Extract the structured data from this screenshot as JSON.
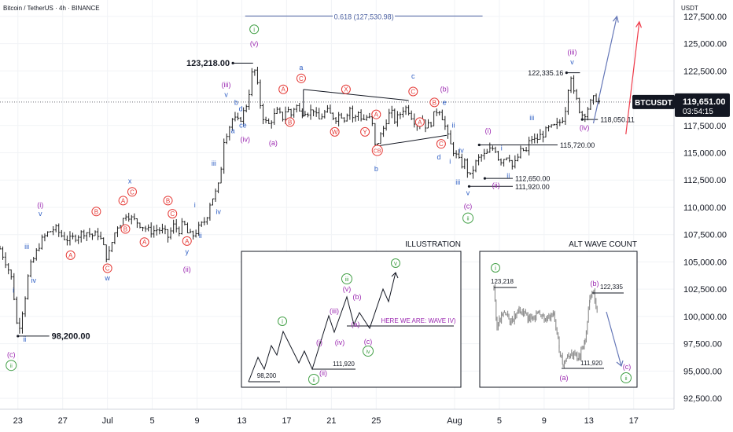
{
  "header": {
    "symbol_title": "Bitcoin / TetherUS · 4h · BINANCE"
  },
  "colors": {
    "bar": "#1e1e1e",
    "blue": "#2f5fc4",
    "purple": "#9b27b0",
    "red": "#e53935",
    "green": "#43a047",
    "fib": "#4a5fa0",
    "arrow_blue": "#6678b8",
    "arrow_red": "#ef3b4a",
    "grid": "#f1f3f6"
  },
  "chart_data": {
    "type": "candlestick",
    "timeframe": "4h",
    "ylim": [
      91500,
      129000
    ],
    "yunit": "USDT",
    "y_ticks": [
      92500,
      95000,
      97500,
      100000,
      102500,
      105000,
      107500,
      110000,
      112500,
      115000,
      117500,
      120000,
      122500,
      125000,
      127500
    ],
    "y_tick_labels": [
      "92,500.00",
      "95,000.00",
      "97,500.00",
      "100,000.00",
      "102,500.00",
      "105,000.00",
      "107,500.00",
      "110,000.00",
      "112,500.00",
      "115,000.00",
      "117,500.00",
      "120,000.00",
      "122,500.00",
      "125,000.00",
      "127,500.00"
    ],
    "x_ticks": [
      {
        "x": 23,
        "label": "23"
      },
      {
        "x": 27,
        "label": "27"
      },
      {
        "x": 31,
        "label": "Jul"
      },
      {
        "x": 35,
        "label": "5"
      },
      {
        "x": 39,
        "label": "9"
      },
      {
        "x": 43,
        "label": "13"
      },
      {
        "x": 47,
        "label": "17"
      },
      {
        "x": 51,
        "label": "21"
      },
      {
        "x": 55,
        "label": "25"
      },
      {
        "x": 62,
        "label": "Aug"
      },
      {
        "x": 66,
        "label": "5"
      },
      {
        "x": 70,
        "label": "9"
      },
      {
        "x": 74,
        "label": "13"
      },
      {
        "x": 78,
        "label": "17"
      }
    ],
    "x_range": [
      21.4,
      81.6
    ],
    "close_path": [
      [
        21.4,
        106200
      ],
      [
        22.0,
        104800
      ],
      [
        22.5,
        103200
      ],
      [
        23.0,
        98400
      ],
      [
        23.2,
        99500
      ],
      [
        23.6,
        101500
      ],
      [
        24.0,
        104300
      ],
      [
        24.5,
        105500
      ],
      [
        25.0,
        106800
      ],
      [
        25.6,
        107600
      ],
      [
        26.3,
        108100
      ],
      [
        27.0,
        107300
      ],
      [
        27.6,
        107000
      ],
      [
        28.3,
        107400
      ],
      [
        29.0,
        107800
      ],
      [
        29.7,
        107400
      ],
      [
        30.2,
        107600
      ],
      [
        30.6,
        106500
      ],
      [
        31.0,
        105200
      ],
      [
        31.4,
        106800
      ],
      [
        31.8,
        108200
      ],
      [
        32.3,
        108700
      ],
      [
        32.7,
        109500
      ],
      [
        33.2,
        108900
      ],
      [
        33.6,
        108700
      ],
      [
        34.1,
        108300
      ],
      [
        34.6,
        107900
      ],
      [
        35.0,
        107800
      ],
      [
        35.5,
        108000
      ],
      [
        36.0,
        107800
      ],
      [
        36.4,
        107300
      ],
      [
        36.9,
        108300
      ],
      [
        37.4,
        107900
      ],
      [
        37.8,
        108600
      ],
      [
        38.2,
        107500
      ],
      [
        38.6,
        107400
      ],
      [
        39.0,
        107900
      ],
      [
        39.4,
        108400
      ],
      [
        39.8,
        108900
      ],
      [
        40.2,
        110600
      ],
      [
        40.6,
        111200
      ],
      [
        41.0,
        112200
      ],
      [
        41.4,
        116200
      ],
      [
        41.8,
        117200
      ],
      [
        42.2,
        118200
      ],
      [
        42.6,
        117800
      ],
      [
        43.0,
        118300
      ],
      [
        43.4,
        119400
      ],
      [
        43.7,
        120800
      ],
      [
        43.9,
        122200
      ],
      [
        44.1,
        122800
      ],
      [
        44.4,
        121100
      ],
      [
        44.7,
        119100
      ],
      [
        45.0,
        117900
      ],
      [
        45.4,
        117600
      ],
      [
        45.8,
        118300
      ],
      [
        46.2,
        118800
      ],
      [
        46.6,
        118100
      ],
      [
        47.0,
        119100
      ],
      [
        47.4,
        118500
      ],
      [
        47.8,
        119500
      ],
      [
        48.2,
        118600
      ],
      [
        48.6,
        118900
      ],
      [
        49.0,
        118700
      ],
      [
        49.4,
        119000
      ],
      [
        49.8,
        117900
      ],
      [
        50.2,
        118500
      ],
      [
        50.6,
        118800
      ],
      [
        51.0,
        118400
      ],
      [
        51.4,
        118200
      ],
      [
        51.8,
        118600
      ],
      [
        52.2,
        118100
      ],
      [
        52.6,
        119300
      ],
      [
        53.0,
        117900
      ],
      [
        53.4,
        118700
      ],
      [
        53.8,
        118000
      ],
      [
        54.2,
        118300
      ],
      [
        54.6,
        117900
      ],
      [
        54.9,
        115600
      ],
      [
        55.1,
        115900
      ],
      [
        55.5,
        116800
      ],
      [
        55.9,
        118000
      ],
      [
        56.3,
        118800
      ],
      [
        56.7,
        117900
      ],
      [
        57.1,
        118500
      ],
      [
        57.5,
        119200
      ],
      [
        57.9,
        118900
      ],
      [
        58.3,
        118100
      ],
      [
        58.7,
        117600
      ],
      [
        59.1,
        118200
      ],
      [
        59.5,
        117300
      ],
      [
        59.9,
        117800
      ],
      [
        60.3,
        118800
      ],
      [
        60.7,
        119000
      ],
      [
        61.1,
        117600
      ],
      [
        61.5,
        116000
      ],
      [
        61.9,
        115200
      ],
      [
        62.2,
        114600
      ],
      [
        62.6,
        113900
      ],
      [
        63.0,
        114200
      ],
      [
        63.3,
        112500
      ],
      [
        63.6,
        113400
      ],
      [
        64.0,
        114300
      ],
      [
        64.4,
        114700
      ],
      [
        64.8,
        114800
      ],
      [
        65.2,
        115300
      ],
      [
        65.6,
        115500
      ],
      [
        66.0,
        114200
      ],
      [
        66.4,
        114500
      ],
      [
        66.8,
        114900
      ],
      [
        67.2,
        113600
      ],
      [
        67.6,
        114500
      ],
      [
        68.0,
        115300
      ],
      [
        68.4,
        115100
      ],
      [
        68.8,
        116400
      ],
      [
        69.2,
        116100
      ],
      [
        69.6,
        116500
      ],
      [
        70.0,
        116800
      ],
      [
        70.4,
        117200
      ],
      [
        70.8,
        117300
      ],
      [
        71.2,
        117600
      ],
      [
        71.6,
        118000
      ],
      [
        72.0,
        119400
      ],
      [
        72.2,
        121600
      ],
      [
        72.4,
        122100
      ],
      [
        72.6,
        120500
      ],
      [
        72.9,
        119800
      ],
      [
        73.2,
        118800
      ],
      [
        73.5,
        118400
      ],
      [
        73.8,
        118900
      ],
      [
        74.1,
        119500
      ],
      [
        74.4,
        119900
      ],
      [
        74.7,
        120000
      ],
      [
        75.0,
        119500
      ]
    ],
    "horizontal_levels": [
      {
        "price": 123218,
        "label": "123,218.00",
        "x1": 42.2,
        "x2": 44.0
      },
      {
        "price": 98200,
        "label": "98,200.00",
        "x1": 23.0,
        "x2": 25.8
      },
      {
        "price": 122335.16,
        "label": "122,335.16",
        "x1": 72.0,
        "x2": 73.2
      },
      {
        "price": 118050.11,
        "label": "118,050.11",
        "x1": 73.4,
        "x2": 74.8
      },
      {
        "price": 115720,
        "label": "115,720.00",
        "x1": 64.2,
        "x2": 71.2
      },
      {
        "price": 112650,
        "label": "112,650.00",
        "x1": 64.7,
        "x2": 67.2
      },
      {
        "price": 111920,
        "label": "111,920.00",
        "x1": 63.3,
        "x2": 67.2
      }
    ],
    "fib_level": {
      "label": "0.618 (127,530.98)",
      "price": 127530.98,
      "x1": 43.3,
      "x2": 64.5
    },
    "triangle": {
      "lines": [
        [
          [
            48.5,
            120800
          ],
          [
            57.9,
            119800
          ]
        ],
        [
          [
            48.5,
            120800
          ],
          [
            48.5,
            118300
          ]
        ],
        [
          [
            55.0,
            115600
          ],
          [
            61.3,
            116600
          ]
        ]
      ]
    },
    "projections": [
      {
        "name": "",
        "color": "arrow_blue",
        "points": [
          [
            74.4,
            117700
          ],
          [
            76.5,
            127500
          ]
        ]
      },
      {
        "name": "",
        "color": "arrow_red",
        "points": [
          [
            77.3,
            116700
          ],
          [
            78.5,
            127000
          ]
        ]
      }
    ],
    "current_price": {
      "symbol": "BTCUSDT",
      "price": "119,651.00",
      "countdown": "03:54:15",
      "value": 119651
    }
  },
  "wave_labels": [
    {
      "t": "(i)",
      "x": 25.0,
      "p": 110000,
      "c": "purple",
      "ring": false
    },
    {
      "t": "v",
      "x": 25.0,
      "p": 109200,
      "c": "blue",
      "ring": false
    },
    {
      "t": "iii",
      "x": 23.8,
      "p": 106200,
      "c": "blue",
      "ring": false
    },
    {
      "t": "iv",
      "x": 24.4,
      "p": 103100,
      "c": "blue",
      "ring": false
    },
    {
      "t": "i",
      "x": 22.6,
      "p": 102200,
      "c": "blue",
      "ring": false
    },
    {
      "t": "ii",
      "x": 23.6,
      "p": 97700,
      "c": "blue",
      "ring": false
    },
    {
      "t": "(c)",
      "x": 22.4,
      "p": 96300,
      "c": "purple",
      "ring": false
    },
    {
      "t": "ii",
      "x": 22.4,
      "p": 95300,
      "c": "green",
      "ring": true
    },
    {
      "t": "A",
      "x": 27.7,
      "p": 105400,
      "c": "red",
      "ring": true
    },
    {
      "t": "B",
      "x": 30.0,
      "p": 109400,
      "c": "red",
      "ring": true
    },
    {
      "t": "C",
      "x": 31.0,
      "p": 104200,
      "c": "red",
      "ring": true
    },
    {
      "t": "w",
      "x": 31.0,
      "p": 103300,
      "c": "blue",
      "ring": false
    },
    {
      "t": "x",
      "x": 33.0,
      "p": 112200,
      "c": "blue",
      "ring": false
    },
    {
      "t": "A",
      "x": 32.4,
      "p": 110400,
      "c": "red",
      "ring": true
    },
    {
      "t": "C",
      "x": 33.2,
      "p": 111200,
      "c": "red",
      "ring": true
    },
    {
      "t": "B",
      "x": 32.6,
      "p": 107800,
      "c": "red",
      "ring": true
    },
    {
      "t": "A",
      "x": 34.3,
      "p": 106600,
      "c": "red",
      "ring": true
    },
    {
      "t": "B",
      "x": 36.4,
      "p": 110400,
      "c": "red",
      "ring": true
    },
    {
      "t": "C",
      "x": 36.8,
      "p": 109200,
      "c": "red",
      "ring": true
    },
    {
      "t": "A",
      "x": 38.1,
      "p": 106700,
      "c": "red",
      "ring": true
    },
    {
      "t": "y",
      "x": 38.1,
      "p": 105700,
      "c": "blue",
      "ring": false
    },
    {
      "t": "(ii)",
      "x": 38.1,
      "p": 104100,
      "c": "purple",
      "ring": false
    },
    {
      "t": "i",
      "x": 38.8,
      "p": 110000,
      "c": "blue",
      "ring": false
    },
    {
      "t": "ii",
      "x": 39.3,
      "p": 107200,
      "c": "blue",
      "ring": false
    },
    {
      "t": "iii",
      "x": 40.5,
      "p": 113800,
      "c": "blue",
      "ring": false
    },
    {
      "t": "iv",
      "x": 40.9,
      "p": 109400,
      "c": "blue",
      "ring": false
    },
    {
      "t": "(iii)",
      "x": 41.6,
      "p": 121000,
      "c": "purple",
      "ring": false
    },
    {
      "t": "v",
      "x": 41.6,
      "p": 120100,
      "c": "blue",
      "ring": false
    },
    {
      "t": "b",
      "x": 42.5,
      "p": 119400,
      "c": "blue",
      "ring": false
    },
    {
      "t": "d",
      "x": 42.9,
      "p": 118800,
      "c": "blue",
      "ring": false
    },
    {
      "t": "a",
      "x": 42.2,
      "p": 116800,
      "c": "blue",
      "ring": false
    },
    {
      "t": "ce",
      "x": 43.1,
      "p": 117300,
      "c": "blue",
      "ring": false
    },
    {
      "t": "(iv)",
      "x": 43.3,
      "p": 116000,
      "c": "purple",
      "ring": false
    },
    {
      "t": "i",
      "x": 44.1,
      "p": 126100,
      "c": "green",
      "ring": true
    },
    {
      "t": "(v)",
      "x": 44.1,
      "p": 124800,
      "c": "purple",
      "ring": false
    },
    {
      "t": "(a)",
      "x": 45.8,
      "p": 115700,
      "c": "purple",
      "ring": false
    },
    {
      "t": "a",
      "x": 48.3,
      "p": 122600,
      "c": "blue",
      "ring": false
    },
    {
      "t": "C",
      "x": 48.3,
      "p": 121600,
      "c": "red",
      "ring": true
    },
    {
      "t": "A",
      "x": 46.7,
      "p": 120600,
      "c": "red",
      "ring": true
    },
    {
      "t": "B",
      "x": 47.3,
      "p": 117600,
      "c": "red",
      "ring": true
    },
    {
      "t": "X",
      "x": 52.3,
      "p": 120600,
      "c": "red",
      "ring": true
    },
    {
      "t": "W",
      "x": 51.3,
      "p": 116700,
      "c": "red",
      "ring": true
    },
    {
      "t": "Y",
      "x": 54.0,
      "p": 116700,
      "c": "red",
      "ring": true
    },
    {
      "t": "A",
      "x": 55.0,
      "p": 118300,
      "c": "red",
      "ring": true
    },
    {
      "t": "c",
      "x": 58.3,
      "p": 121800,
      "c": "blue",
      "ring": false
    },
    {
      "t": "C",
      "x": 58.3,
      "p": 120400,
      "c": "red",
      "ring": true
    },
    {
      "t": "A",
      "x": 58.9,
      "p": 117600,
      "c": "red",
      "ring": true
    },
    {
      "t": "B",
      "x": 60.2,
      "p": 119400,
      "c": "red",
      "ring": true
    },
    {
      "t": "CB",
      "x": 55.1,
      "p": 115000,
      "c": "red",
      "ring": true
    },
    {
      "t": "b",
      "x": 55.0,
      "p": 113300,
      "c": "blue",
      "ring": false
    },
    {
      "t": "(b)",
      "x": 61.1,
      "p": 120600,
      "c": "purple",
      "ring": false
    },
    {
      "t": "e",
      "x": 61.1,
      "p": 119400,
      "c": "blue",
      "ring": false
    },
    {
      "t": "C",
      "x": 60.8,
      "p": 115600,
      "c": "red",
      "ring": true
    },
    {
      "t": "d",
      "x": 60.6,
      "p": 114400,
      "c": "blue",
      "ring": false
    },
    {
      "t": "ii",
      "x": 61.9,
      "p": 117300,
      "c": "blue",
      "ring": false
    },
    {
      "t": "i",
      "x": 61.6,
      "p": 114000,
      "c": "blue",
      "ring": false
    },
    {
      "t": "iv",
      "x": 62.6,
      "p": 115000,
      "c": "blue",
      "ring": false
    },
    {
      "t": "iii",
      "x": 62.3,
      "p": 112100,
      "c": "blue",
      "ring": false
    },
    {
      "t": "v",
      "x": 63.2,
      "p": 111100,
      "c": "blue",
      "ring": false
    },
    {
      "t": "(c)",
      "x": 63.2,
      "p": 109900,
      "c": "purple",
      "ring": false
    },
    {
      "t": "ii",
      "x": 63.2,
      "p": 108800,
      "c": "green",
      "ring": true
    },
    {
      "t": "(i)",
      "x": 65.0,
      "p": 116800,
      "c": "purple",
      "ring": false
    },
    {
      "t": "i",
      "x": 66.2,
      "p": 115200,
      "c": "blue",
      "ring": false
    },
    {
      "t": "ii",
      "x": 66.8,
      "p": 112700,
      "c": "blue",
      "ring": false
    },
    {
      "t": "(ii)",
      "x": 65.7,
      "p": 111800,
      "c": "purple",
      "ring": false
    },
    {
      "t": "iii",
      "x": 68.9,
      "p": 118000,
      "c": "blue",
      "ring": false
    },
    {
      "t": "(iii)",
      "x": 72.5,
      "p": 124000,
      "c": "purple",
      "ring": false
    },
    {
      "t": "v",
      "x": 72.5,
      "p": 123100,
      "c": "blue",
      "ring": false
    },
    {
      "t": "(iv)",
      "x": 73.6,
      "p": 117100,
      "c": "purple",
      "ring": false
    }
  ],
  "illustration": {
    "title": "ILLUSTRATION",
    "note": "HERE WE ARE: WAVE IV)",
    "levels": [
      "98,200",
      "111,920"
    ],
    "labels": [
      {
        "t": "i",
        "c": "green",
        "ring": true
      },
      {
        "t": "(i)",
        "c": "purple",
        "ring": false
      },
      {
        "t": "(ii)",
        "c": "purple",
        "ring": false
      },
      {
        "t": "ii",
        "c": "green",
        "ring": true
      },
      {
        "t": "(iii)",
        "c": "purple",
        "ring": false
      },
      {
        "t": "iii",
        "c": "green",
        "ring": true
      },
      {
        "t": "(v)",
        "c": "purple",
        "ring": false
      },
      {
        "t": "(iv)",
        "c": "purple",
        "ring": false
      },
      {
        "t": "(a)",
        "c": "purple",
        "ring": false
      },
      {
        "t": "(b)",
        "c": "purple",
        "ring": false
      },
      {
        "t": "(c)",
        "c": "purple",
        "ring": false
      },
      {
        "t": "iv",
        "c": "green",
        "ring": true
      },
      {
        "t": "v",
        "c": "green",
        "ring": true
      }
    ]
  },
  "alt_wave_count": {
    "title": "ALT WAVE COUNT",
    "levels": [
      "123,218",
      "122,335",
      "111,920"
    ],
    "labels": [
      {
        "t": "i",
        "c": "green",
        "ring": true
      },
      {
        "t": "(b)",
        "c": "purple",
        "ring": false
      },
      {
        "t": "(a)",
        "c": "purple",
        "ring": false
      },
      {
        "t": "(c)",
        "c": "purple",
        "ring": false
      },
      {
        "t": "ii",
        "c": "green",
        "ring": true
      }
    ]
  }
}
